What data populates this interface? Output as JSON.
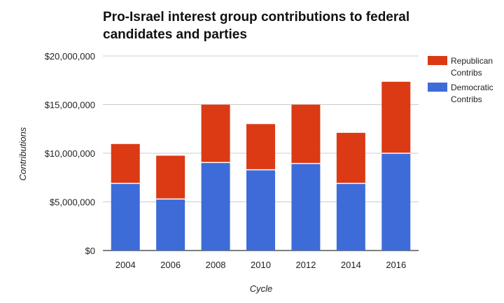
{
  "chart_data": {
    "type": "bar",
    "stacked": true,
    "title_lines": [
      "Pro-Israel interest group contributions to federal",
      "candidates and parties"
    ],
    "xlabel": "Cycle",
    "ylabel": "Contributions",
    "categories": [
      "2004",
      "2006",
      "2008",
      "2010",
      "2012",
      "2014",
      "2016"
    ],
    "series": [
      {
        "name_lines": [
          "Democratic",
          "Contribs"
        ],
        "color": "#3d6cd8",
        "values": [
          6900000,
          5300000,
          9050000,
          8300000,
          8950000,
          6900000,
          10000000
        ]
      },
      {
        "name_lines": [
          "Republican",
          "Contribs"
        ],
        "color": "#db3a14",
        "values": [
          4050000,
          4450000,
          5950000,
          4700000,
          6050000,
          5200000,
          7350000
        ]
      }
    ],
    "ylim": [
      0,
      20000000
    ],
    "yticks": [
      0,
      5000000,
      10000000,
      15000000,
      20000000
    ],
    "ytick_labels": [
      "$0",
      "$5,000,000",
      "$10,000,000",
      "$15,000,000",
      "$20,000,000"
    ],
    "grid": true,
    "legend": {
      "position": "right",
      "order": [
        "Republican Contribs",
        "Democratic Contribs"
      ]
    },
    "colors": {
      "grid": "#cccccc",
      "axis": "#333333",
      "text": "#222222"
    }
  }
}
